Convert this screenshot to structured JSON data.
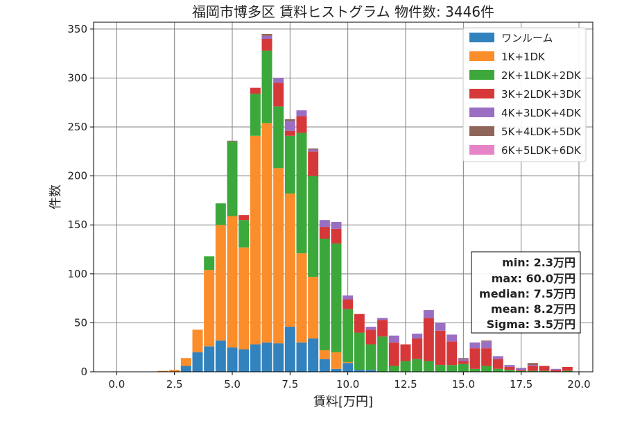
{
  "chart_data": {
    "type": "bar",
    "stacked": true,
    "title": "福岡市博多区 賃料ヒストグラム  物件数: 3446件",
    "xlabel": "賃料[万円]",
    "ylabel": "件数",
    "xlim": [
      -1.0,
      20.6
    ],
    "ylim": [
      0,
      357
    ],
    "x_ticks": [
      0,
      2.5,
      5,
      7.5,
      10,
      12.5,
      15,
      17.5,
      20
    ],
    "x_tick_labels": [
      "0.0",
      "2.5",
      "5.0",
      "7.5",
      "10.0",
      "12.5",
      "15.0",
      "17.5",
      "20.0"
    ],
    "y_ticks": [
      0,
      50,
      100,
      150,
      200,
      250,
      300,
      350
    ],
    "y_tick_labels": [
      "0",
      "50",
      "100",
      "150",
      "200",
      "250",
      "300",
      "350"
    ],
    "grid": true,
    "legend_position": "top-right",
    "bin_width": 0.5,
    "x": [
      2.0,
      2.5,
      3.0,
      3.5,
      4.0,
      4.5,
      5.0,
      5.5,
      6.0,
      6.5,
      7.0,
      7.5,
      8.0,
      8.5,
      9.0,
      9.5,
      10.0,
      10.5,
      11.0,
      11.5,
      12.0,
      12.5,
      13.0,
      13.5,
      14.0,
      14.5,
      15.0,
      15.5,
      16.0,
      16.5,
      17.0,
      17.5,
      18.0,
      18.5,
      19.0,
      19.5
    ],
    "series": [
      {
        "name": "ワンルーム",
        "color": "#3282bd",
        "values": [
          0,
          0,
          6,
          20,
          26,
          32,
          25,
          23,
          28,
          30,
          29,
          46,
          30,
          34,
          13,
          3,
          9,
          2,
          2,
          0,
          0,
          0,
          0,
          0,
          0,
          0,
          0,
          0,
          0,
          0,
          0,
          0,
          0,
          0,
          0,
          0
        ]
      },
      {
        "name": "1K+1DK",
        "color": "#fb8d2a",
        "values": [
          1,
          2,
          8,
          23,
          78,
          118,
          134,
          104,
          213,
          224,
          179,
          136,
          91,
          63,
          9,
          17,
          1,
          0,
          0,
          0,
          0,
          0,
          0,
          0,
          0,
          0,
          0,
          0,
          0,
          0,
          0,
          0,
          0,
          0,
          0,
          0
        ]
      },
      {
        "name": "2K+1LDK+2DK",
        "color": "#3ca83c",
        "values": [
          0,
          0,
          0,
          0,
          14,
          22,
          76,
          28,
          43,
          74,
          63,
          59,
          123,
          103,
          114,
          111,
          54,
          38,
          26,
          36,
          6,
          11,
          13,
          11,
          7,
          7,
          8,
          3,
          6,
          3,
          2,
          1,
          1,
          1,
          0,
          1
        ]
      },
      {
        "name": "3K+2LDK+3DK",
        "color": "#d6383a",
        "values": [
          0,
          0,
          0,
          0,
          0,
          0,
          0,
          5,
          6,
          12,
          24,
          5,
          17,
          25,
          12,
          15,
          10,
          19,
          15,
          17,
          24,
          17,
          21,
          44,
          35,
          24,
          3,
          21,
          18,
          10,
          3,
          1,
          5,
          5,
          2,
          4
        ]
      },
      {
        "name": "4K+3LDK+4DK",
        "color": "#9a6fc3",
        "values": [
          0,
          0,
          0,
          0,
          0,
          0,
          0,
          0,
          0,
          3,
          5,
          10,
          6,
          2,
          7,
          7,
          4,
          0,
          3,
          2,
          7,
          0,
          5,
          8,
          8,
          7,
          2,
          6,
          7,
          3,
          2,
          2,
          1,
          0,
          1,
          0
        ]
      },
      {
        "name": "5K+4LDK+5DK",
        "color": "#8f6559",
        "values": [
          0,
          0,
          0,
          0,
          0,
          0,
          1,
          0,
          0,
          2,
          0,
          2,
          0,
          1,
          0,
          0,
          0,
          0,
          0,
          0,
          0,
          0,
          0,
          0,
          0,
          0,
          1,
          0,
          1,
          0,
          0,
          0,
          2,
          0,
          0,
          0
        ]
      },
      {
        "name": "6K+5LDK+6DK",
        "color": "#e684c8",
        "values": [
          0,
          0,
          0,
          0,
          0,
          0,
          0,
          0,
          0,
          0,
          0,
          0,
          0,
          0,
          0,
          0,
          0,
          0,
          0,
          0,
          0,
          0,
          0,
          0,
          0,
          0,
          0,
          0,
          0,
          0,
          0,
          0,
          0,
          0,
          0,
          0
        ]
      }
    ],
    "stats_box": {
      "lines": [
        "min: 2.3万円",
        "max: 60.0万円",
        "median: 7.5万円",
        "mean: 8.2万円",
        "Sigma: 3.5万円"
      ]
    }
  }
}
